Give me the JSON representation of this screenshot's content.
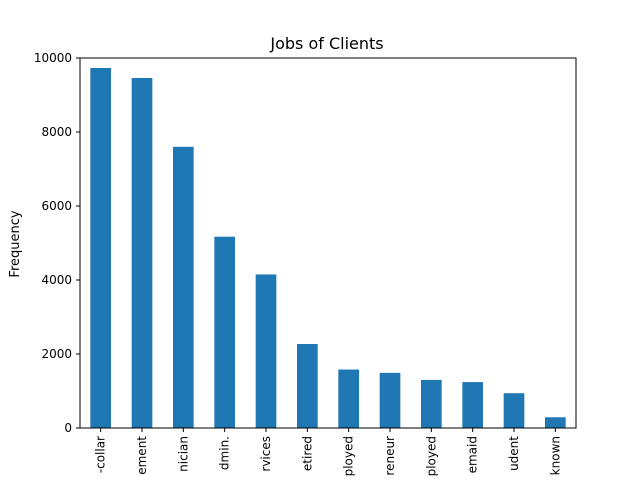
{
  "chart_data": {
    "type": "bar",
    "title": "Jobs of Clients",
    "xlabel": "",
    "ylabel": "Frequency",
    "categories": [
      "-collar",
      "ement",
      "nician",
      "dmin.",
      "rvices",
      "etired",
      "ployed",
      "reneur",
      "ployed",
      "emaid",
      "udent",
      "known"
    ],
    "values": [
      9730,
      9460,
      7600,
      5170,
      4150,
      2270,
      1580,
      1490,
      1300,
      1240,
      940,
      290
    ],
    "ylim": [
      0,
      10000
    ],
    "yticks": [
      0,
      2000,
      4000,
      6000,
      8000,
      10000
    ],
    "bar_color": "#1f77b4",
    "grid": false,
    "legend": "none"
  }
}
